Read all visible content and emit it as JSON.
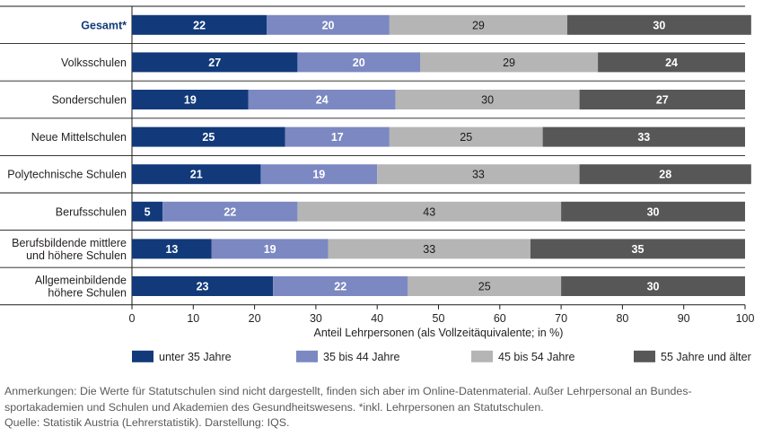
{
  "chart_data": {
    "type": "bar",
    "orientation": "horizontal",
    "stacked": true,
    "categories": [
      [
        "Gesamt*"
      ],
      [
        "Volksschulen"
      ],
      [
        "Sonderschulen"
      ],
      [
        "Neue Mittelschulen"
      ],
      [
        "Polytechnische Schulen"
      ],
      [
        "Berufsschulen"
      ],
      [
        "Berufsbildende mittlere",
        "und höhere Schulen"
      ],
      [
        "Allgemeinbildende",
        "höhere Schulen"
      ]
    ],
    "series": [
      {
        "name": "unter 35 Jahre",
        "color": "#123a7a",
        "label_color": "#ffffff",
        "values": [
          22,
          27,
          19,
          25,
          21,
          5,
          13,
          23
        ]
      },
      {
        "name": "35 bis 44 Jahre",
        "color": "#7c88c2",
        "label_color": "#ffffff",
        "values": [
          20,
          20,
          24,
          17,
          19,
          22,
          19,
          22
        ]
      },
      {
        "name": "45 bis 54 Jahre",
        "color": "#b5b5b5",
        "label_color": "#1a1a1a",
        "values": [
          29,
          29,
          30,
          25,
          33,
          43,
          33,
          25
        ]
      },
      {
        "name": "55 Jahre und älter",
        "color": "#575757",
        "label_color": "#ffffff",
        "values": [
          30,
          24,
          27,
          33,
          28,
          30,
          35,
          30
        ]
      }
    ],
    "highlight_category": "Gesamt*",
    "highlight_color": "#123a7a",
    "xlabel": "Anteil Lehrpersonen (als Vollzeitäquivalente; in %)",
    "xlim": [
      0,
      100
    ],
    "xticks": [
      0,
      10,
      20,
      30,
      40,
      50,
      60,
      70,
      80,
      90,
      100
    ],
    "legend_position": "bottom",
    "grid": false
  },
  "notes": {
    "line1": "Anmerkungen: Die Werte für Statutschulen sind nicht dargestellt, finden sich aber im Online-Datenmaterial. Außer Lehrpersonal an Bundes-",
    "line2": "sportakademien und Schulen und Akademien des Gesundheitswesens. *inkl. Lehrpersonen an Statutschulen.",
    "line3": "Quelle: Statistik Austria (Lehrerstatistik). Darstellung: IQS."
  }
}
